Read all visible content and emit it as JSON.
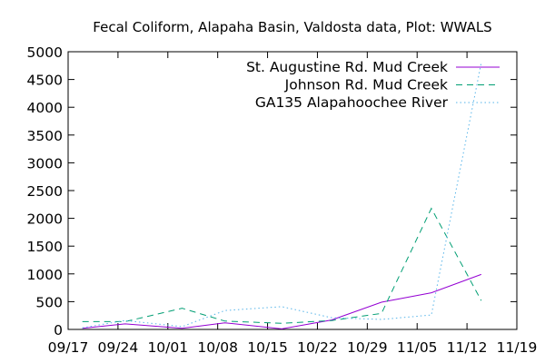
{
  "chart_data": {
    "type": "line",
    "title": "Fecal Coliform, Alapaha Basin, Valdosta data, Plot: WWALS",
    "xlabel": "",
    "ylabel": "",
    "xlim": [
      "2018-09-17",
      "2018-11-19"
    ],
    "ylim": [
      0,
      5000
    ],
    "x_ticks": [
      "09/17",
      "09/24",
      "10/01",
      "10/08",
      "10/15",
      "10/22",
      "10/29",
      "11/05",
      "11/12",
      "11/19"
    ],
    "y_ticks": [
      0,
      500,
      1000,
      1500,
      2000,
      2500,
      3000,
      3500,
      4000,
      4500,
      5000
    ],
    "grid": false,
    "legend_position": "top-right",
    "series": [
      {
        "name": "St. Augustine Rd. Mud Creek",
        "color": "#9400d3",
        "dash": "solid",
        "x": [
          "2018-09-19",
          "2018-09-25",
          "2018-10-03",
          "2018-10-09",
          "2018-10-17",
          "2018-10-24",
          "2018-10-31",
          "2018-11-07",
          "2018-11-14"
        ],
        "values": [
          20,
          100,
          20,
          120,
          10,
          170,
          490,
          660,
          990
        ]
      },
      {
        "name": "Johnson Rd. Mud Creek",
        "color": "#009e73",
        "dash": "dashed",
        "x": [
          "2018-09-19",
          "2018-09-25",
          "2018-10-03",
          "2018-10-09",
          "2018-10-17",
          "2018-10-24",
          "2018-10-31",
          "2018-11-07",
          "2018-11-14"
        ],
        "values": [
          140,
          140,
          380,
          150,
          110,
          160,
          290,
          2180,
          520
        ]
      },
      {
        "name": "GA135 Alapahoochee River",
        "color": "#56b4e9",
        "dash": "dotted",
        "x": [
          "2018-09-19",
          "2018-09-25",
          "2018-10-03",
          "2018-10-09",
          "2018-10-17",
          "2018-10-24",
          "2018-10-31",
          "2018-11-07",
          "2018-11-14"
        ],
        "values": [
          30,
          160,
          50,
          340,
          410,
          210,
          180,
          260,
          4800
        ]
      }
    ]
  }
}
